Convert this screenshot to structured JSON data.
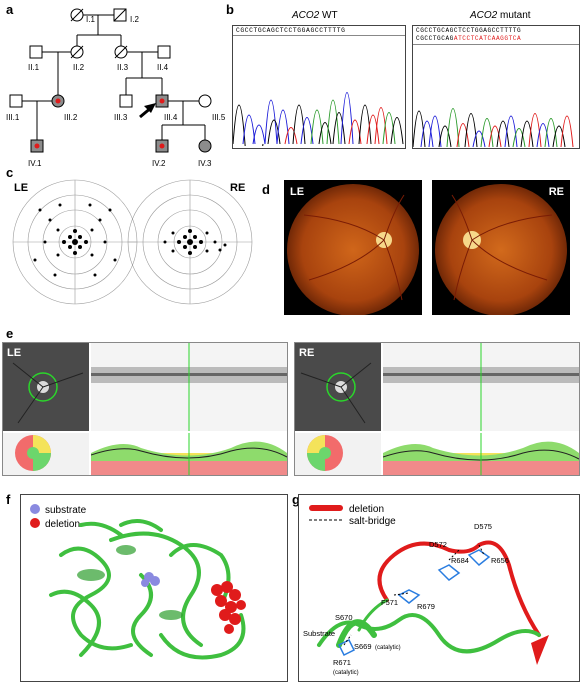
{
  "panels": {
    "a": "a",
    "b": "b",
    "c": "c",
    "d": "d",
    "e": "e",
    "f": "f",
    "g": "g"
  },
  "pedigree": {
    "individuals": {
      "I1": "I.1",
      "I2": "I.2",
      "II1": "II.1",
      "II2": "II.2",
      "II3": "II.3",
      "II4": "II.4",
      "III1": "III.1",
      "III2": "III.2",
      "III3": "III.3",
      "III4": "III.4",
      "III5": "III.5",
      "IV1": "IV.1",
      "IV2": "IV.2",
      "IV3": "IV.3"
    }
  },
  "sequencing": {
    "wt_gene": "ACO2",
    "wt_suffix": " WT",
    "mut_gene": "ACO2",
    "mut_suffix": " mutant",
    "wt_seq": "CGCCTGCAGCTCCTGGAGCCTTTTG",
    "mut_seq_line1": "CGCCTGCAGCTCCTGGAGCCTTTTG",
    "mut_seq_line2_black": "CGCCTGCAG",
    "mut_seq_line2_red": "ATCCTCATCAAGGTCA"
  },
  "visual_field": {
    "left": "LE",
    "right": "RE"
  },
  "fundus": {
    "left": "LE",
    "right": "RE"
  },
  "oct": {
    "left": "LE",
    "right": "RE"
  },
  "structure": {
    "legend_substrate": "substrate",
    "legend_deletion": "deletion"
  },
  "detail": {
    "legend_deletion": "deletion",
    "legend_saltbridge": "salt-bridge",
    "residues": {
      "D575": "D575",
      "D572": "D572",
      "R684": "R684",
      "R656": "R656",
      "F571": "F571",
      "R679": "R679",
      "S670": "S670",
      "Substrate": "Substrate",
      "S669": "S669",
      "S669_note": "(catalytic)",
      "R671": "R671",
      "R671_note": "(catalytic)"
    }
  },
  "colors": {
    "affected_fill": "#8c8c8c",
    "mutation_dot": "#e01b1b",
    "protein_green": "#3fbf3f",
    "deletion_red": "#e01b1b",
    "substrate_blue": "#8a8ae0"
  }
}
